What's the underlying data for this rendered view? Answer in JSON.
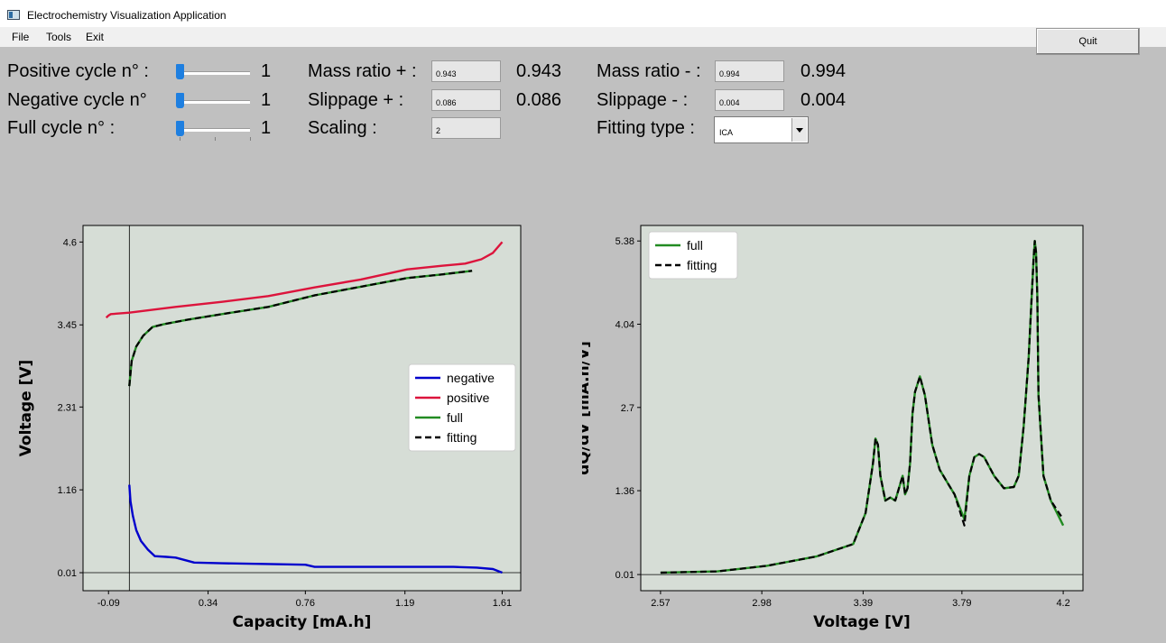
{
  "window": {
    "title": "Electrochemistry Visualization Application"
  },
  "menu": {
    "items": [
      "File",
      "Tools",
      "Exit"
    ]
  },
  "quit_label": "Quit",
  "controls": {
    "positive_cycle": {
      "label": "Positive cycle n° :",
      "value": "1",
      "slider_fraction": 0.0
    },
    "negative_cycle": {
      "label": "Negative cycle n°",
      "value": "1",
      "slider_fraction": 0.0
    },
    "full_cycle": {
      "label": "Full cycle n° :",
      "value": "1",
      "slider_fraction": 0.0
    },
    "mass_ratio_pos": {
      "label": "Mass ratio + :",
      "input": "0.943",
      "display": "0.943"
    },
    "slippage_pos": {
      "label": "Slippage + :",
      "input": "0.086",
      "display": "0.086"
    },
    "scaling": {
      "label": "Scaling :",
      "input": "2"
    },
    "mass_ratio_neg": {
      "label": "Mass ratio - :",
      "input": "0.994",
      "display": "0.994"
    },
    "slippage_neg": {
      "label": "Slippage - :",
      "input": "0.004",
      "display": "0.004"
    },
    "fitting_type": {
      "label": "Fitting type :",
      "selected": "ICA"
    }
  },
  "chart_data": [
    {
      "type": "line",
      "xlabel": "Capacity [mA.h]",
      "ylabel": "Voltage [V]",
      "xticks": [
        "-0.09",
        "0.34",
        "0.76",
        "1.19",
        "1.61"
      ],
      "yticks": [
        "0.01",
        "1.16",
        "2.31",
        "3.45",
        "4.6"
      ],
      "xlim": [
        -0.2,
        1.69
      ],
      "ylim": [
        -0.24,
        4.83
      ],
      "reference_lines": {
        "x": 0.0,
        "y": 0.01
      },
      "legend": {
        "placement": "center-right",
        "entries": [
          "negative",
          "positive",
          "full",
          "fitting"
        ]
      },
      "series": [
        {
          "name": "negative",
          "color": "#0000cc",
          "dash": false,
          "x": [
            0,
            0.005,
            0.015,
            0.03,
            0.05,
            0.08,
            0.11,
            0.16,
            0.2,
            0.28,
            0.4,
            0.6,
            0.76,
            0.8,
            1.0,
            1.2,
            1.4,
            1.5,
            1.57,
            1.61
          ],
          "y": [
            1.23,
            1.0,
            0.8,
            0.6,
            0.45,
            0.33,
            0.24,
            0.23,
            0.22,
            0.15,
            0.14,
            0.13,
            0.12,
            0.09,
            0.09,
            0.09,
            0.09,
            0.08,
            0.06,
            0.01
          ]
        },
        {
          "name": "positive",
          "color": "#dc143c",
          "dash": false,
          "x": [
            -0.1,
            -0.09,
            -0.08,
            0.0,
            0.2,
            0.4,
            0.6,
            0.8,
            1.0,
            1.2,
            1.35,
            1.45,
            1.52,
            1.57,
            1.61
          ],
          "y": [
            3.55,
            3.58,
            3.6,
            3.62,
            3.7,
            3.77,
            3.85,
            3.97,
            4.08,
            4.22,
            4.27,
            4.3,
            4.36,
            4.45,
            4.6
          ]
        },
        {
          "name": "full",
          "color": "#228b22",
          "dash": false,
          "x": [
            0.0,
            0.01,
            0.03,
            0.06,
            0.1,
            0.15,
            0.25,
            0.4,
            0.6,
            0.8,
            1.0,
            1.2,
            1.35,
            1.48
          ],
          "y": [
            2.6,
            2.95,
            3.15,
            3.3,
            3.42,
            3.46,
            3.52,
            3.6,
            3.7,
            3.86,
            3.98,
            4.1,
            4.15,
            4.2
          ]
        },
        {
          "name": "fitting",
          "color": "#000000",
          "dash": true,
          "x": [
            0.0,
            0.01,
            0.03,
            0.06,
            0.1,
            0.15,
            0.25,
            0.4,
            0.6,
            0.8,
            1.0,
            1.2,
            1.35,
            1.48
          ],
          "y": [
            2.6,
            2.95,
            3.15,
            3.3,
            3.42,
            3.46,
            3.52,
            3.6,
            3.7,
            3.86,
            3.98,
            4.1,
            4.15,
            4.2
          ]
        }
      ]
    },
    {
      "type": "line",
      "xlabel": "Voltage [V]",
      "ylabel": "dQ/dV [mA.h/V]",
      "xticks": [
        "2.57",
        "2.98",
        "3.39",
        "3.79",
        "4.2"
      ],
      "yticks": [
        "0.01",
        "1.36",
        "2.7",
        "4.04",
        "5.38"
      ],
      "xlim": [
        2.49,
        4.28
      ],
      "ylim": [
        -0.25,
        5.63
      ],
      "reference_lines": {
        "y": 0.01
      },
      "legend": {
        "placement": "top-left",
        "entries": [
          "full",
          "fitting"
        ]
      },
      "series": [
        {
          "name": "full",
          "color": "#228b22",
          "dash": false,
          "x": [
            2.57,
            2.8,
            3.0,
            3.2,
            3.35,
            3.4,
            3.43,
            3.44,
            3.45,
            3.46,
            3.48,
            3.5,
            3.52,
            3.55,
            3.56,
            3.57,
            3.58,
            3.59,
            3.6,
            3.62,
            3.64,
            3.67,
            3.7,
            3.73,
            3.76,
            3.8,
            3.82,
            3.84,
            3.86,
            3.88,
            3.92,
            3.96,
            4.0,
            4.02,
            4.04,
            4.06,
            4.08,
            4.085,
            4.09,
            4.095,
            4.1,
            4.12,
            4.15,
            4.2
          ],
          "y": [
            0.04,
            0.06,
            0.15,
            0.3,
            0.5,
            1.0,
            1.8,
            2.2,
            2.1,
            1.6,
            1.2,
            1.25,
            1.2,
            1.6,
            1.3,
            1.4,
            1.8,
            2.6,
            2.95,
            3.2,
            2.9,
            2.1,
            1.7,
            1.5,
            1.3,
            0.9,
            1.6,
            1.9,
            1.95,
            1.9,
            1.6,
            1.4,
            1.42,
            1.6,
            2.4,
            3.5,
            5.1,
            5.38,
            5.2,
            4.5,
            2.9,
            1.6,
            1.2,
            0.8
          ]
        },
        {
          "name": "fitting",
          "color": "#000000",
          "dash": true,
          "x": [
            2.57,
            2.8,
            3.0,
            3.2,
            3.35,
            3.4,
            3.43,
            3.44,
            3.45,
            3.46,
            3.48,
            3.5,
            3.52,
            3.55,
            3.56,
            3.57,
            3.58,
            3.59,
            3.6,
            3.62,
            3.64,
            3.67,
            3.7,
            3.73,
            3.76,
            3.8,
            3.82,
            3.84,
            3.86,
            3.88,
            3.92,
            3.96,
            4.0,
            4.02,
            4.04,
            4.06,
            4.08,
            4.085,
            4.09,
            4.095,
            4.1,
            4.12,
            4.15,
            4.2
          ],
          "y": [
            0.04,
            0.06,
            0.15,
            0.3,
            0.5,
            1.0,
            1.8,
            2.2,
            2.1,
            1.6,
            1.2,
            1.25,
            1.2,
            1.6,
            1.3,
            1.4,
            1.8,
            2.6,
            2.95,
            3.2,
            2.9,
            2.1,
            1.7,
            1.5,
            1.3,
            0.8,
            1.6,
            1.9,
            1.95,
            1.9,
            1.6,
            1.4,
            1.42,
            1.6,
            2.4,
            3.5,
            5.1,
            5.38,
            5.2,
            4.5,
            2.9,
            1.6,
            1.2,
            0.9
          ]
        }
      ]
    }
  ]
}
